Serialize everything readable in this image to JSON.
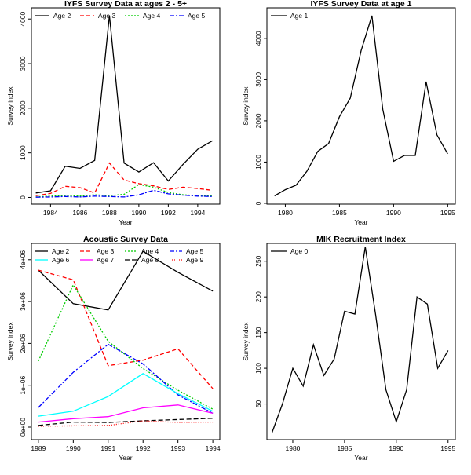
{
  "chart_data": [
    {
      "type": "line",
      "title": "IYFS Survey Data at ages 2 - 5+",
      "xlabel": "Year",
      "ylabel": "Survey index",
      "xlim": [
        1982.7,
        1995.5
      ],
      "ylim": [
        -150,
        4250
      ],
      "xticks": [
        1984,
        1986,
        1988,
        1990,
        1992,
        1994
      ],
      "yticks": [
        0,
        1000,
        2000,
        3000,
        4000
      ],
      "ytick_labels": [
        "0",
        "1000",
        "2000",
        "3000",
        "4000"
      ],
      "grid": false,
      "legend": "top",
      "x": [
        1983,
        1984,
        1985,
        1986,
        1987,
        1988,
        1989,
        1990,
        1991,
        1992,
        1993,
        1994,
        1995
      ],
      "series": [
        {
          "name": "Age 2",
          "color": "#000000",
          "dash": "",
          "values": [
            100,
            150,
            700,
            650,
            830,
            4080,
            770,
            570,
            780,
            370,
            740,
            1080,
            1270
          ]
        },
        {
          "name": "Age 3",
          "color": "#ff0000",
          "dash": "5,3",
          "values": [
            40,
            90,
            250,
            220,
            100,
            770,
            390,
            310,
            260,
            180,
            230,
            200,
            160
          ]
        },
        {
          "name": "Age 4",
          "color": "#00cc00",
          "dash": "2,2",
          "values": [
            10,
            30,
            40,
            30,
            60,
            40,
            70,
            290,
            230,
            110,
            60,
            40,
            40
          ]
        },
        {
          "name": "Age 5",
          "color": "#0000ff",
          "dash": "6,2,2,2",
          "values": [
            5,
            10,
            20,
            10,
            30,
            20,
            10,
            60,
            160,
            80,
            50,
            30,
            20
          ]
        }
      ]
    },
    {
      "type": "line",
      "title": "IYFS Survey Data at age 1",
      "xlabel": "Year",
      "ylabel": "Survey index",
      "xlim": [
        1978.3,
        1995.7
      ],
      "ylim": [
        -20,
        4740
      ],
      "xticks": [
        1980,
        1985,
        1990,
        1995
      ],
      "yticks": [
        0,
        1000,
        2000,
        3000,
        4000
      ],
      "ytick_labels": [
        "0",
        "1000",
        "2000",
        "3000",
        "4000"
      ],
      "grid": false,
      "legend": "top-left",
      "x": [
        1979,
        1980,
        1981,
        1982,
        1983,
        1984,
        1985,
        1986,
        1987,
        1988,
        1989,
        1990,
        1991,
        1992,
        1993,
        1994,
        1995
      ],
      "series": [
        {
          "name": "Age 1",
          "color": "#000000",
          "dash": "",
          "values": [
            180,
            330,
            440,
            780,
            1260,
            1450,
            2100,
            2550,
            3700,
            4550,
            2280,
            1020,
            1160,
            1160,
            2950,
            1660,
            1200
          ]
        }
      ]
    },
    {
      "type": "line",
      "title": "Acoustic Survey Data",
      "xlabel": "Year",
      "ylabel": "Survey index",
      "xlim": [
        1988.8,
        1994.2
      ],
      "ylim": [
        -300000,
        4390000
      ],
      "xticks": [
        1989,
        1990,
        1991,
        1992,
        1993,
        1994
      ],
      "yticks": [
        0,
        1000000,
        2000000,
        3000000,
        4000000
      ],
      "ytick_labels": [
        "0e+00",
        "1e+06",
        "2e+06",
        "3e+06",
        "4e+06"
      ],
      "grid": false,
      "legend": "top",
      "x": [
        1989,
        1990,
        1991,
        1992,
        1993,
        1994
      ],
      "series": [
        {
          "name": "Age 2",
          "color": "#000000",
          "dash": "",
          "values": [
            3750000,
            2950000,
            2800000,
            4200000,
            3700000,
            3250000
          ]
        },
        {
          "name": "Age 3",
          "color": "#ff0000",
          "dash": "5,3",
          "values": [
            3750000,
            3520000,
            1470000,
            1600000,
            1870000,
            920000
          ]
        },
        {
          "name": "Age 4",
          "color": "#00cc00",
          "dash": "2,2",
          "values": [
            1580000,
            3400000,
            2050000,
            1400000,
            880000,
            430000
          ]
        },
        {
          "name": "Age 5",
          "color": "#0000ff",
          "dash": "6,2,2,2",
          "values": [
            470000,
            1310000,
            1980000,
            1510000,
            770000,
            330000
          ]
        },
        {
          "name": "Age 6",
          "color": "#00ffff",
          "dash": "",
          "values": [
            260000,
            380000,
            730000,
            1280000,
            800000,
            380000
          ]
        },
        {
          "name": "Age 7",
          "color": "#ff00ff",
          "dash": "",
          "values": [
            120000,
            200000,
            250000,
            460000,
            530000,
            330000
          ]
        },
        {
          "name": "Age 8",
          "color": "#000000",
          "dash": "6,3",
          "values": [
            40000,
            120000,
            110000,
            150000,
            180000,
            210000
          ]
        },
        {
          "name": "Age 9",
          "color": "#ff0000",
          "dash": "1,2",
          "values": [
            20000,
            30000,
            40000,
            150000,
            110000,
            120000
          ]
        }
      ]
    },
    {
      "type": "line",
      "title": "MIK Recruitment Index",
      "xlabel": "Year",
      "ylabel": "Survey index",
      "xlim": [
        1977.5,
        1995.7
      ],
      "ylim": [
        0,
        275
      ],
      "xticks": [
        1980,
        1985,
        1990,
        1995
      ],
      "yticks": [
        50,
        100,
        150,
        200,
        250
      ],
      "ytick_labels": [
        "50",
        "100",
        "150",
        "200",
        "250"
      ],
      "grid": false,
      "legend": "top-left",
      "x": [
        1978,
        1979,
        1980,
        1981,
        1982,
        1983,
        1984,
        1985,
        1986,
        1987,
        1988,
        1989,
        1990,
        1991,
        1992,
        1993,
        1994,
        1995
      ],
      "series": [
        {
          "name": "Age 0",
          "color": "#000000",
          "dash": "",
          "values": [
            10,
            50,
            100,
            75,
            133,
            90,
            113,
            180,
            176,
            270,
            175,
            70,
            25,
            70,
            200,
            190,
            100,
            125
          ]
        }
      ]
    }
  ]
}
